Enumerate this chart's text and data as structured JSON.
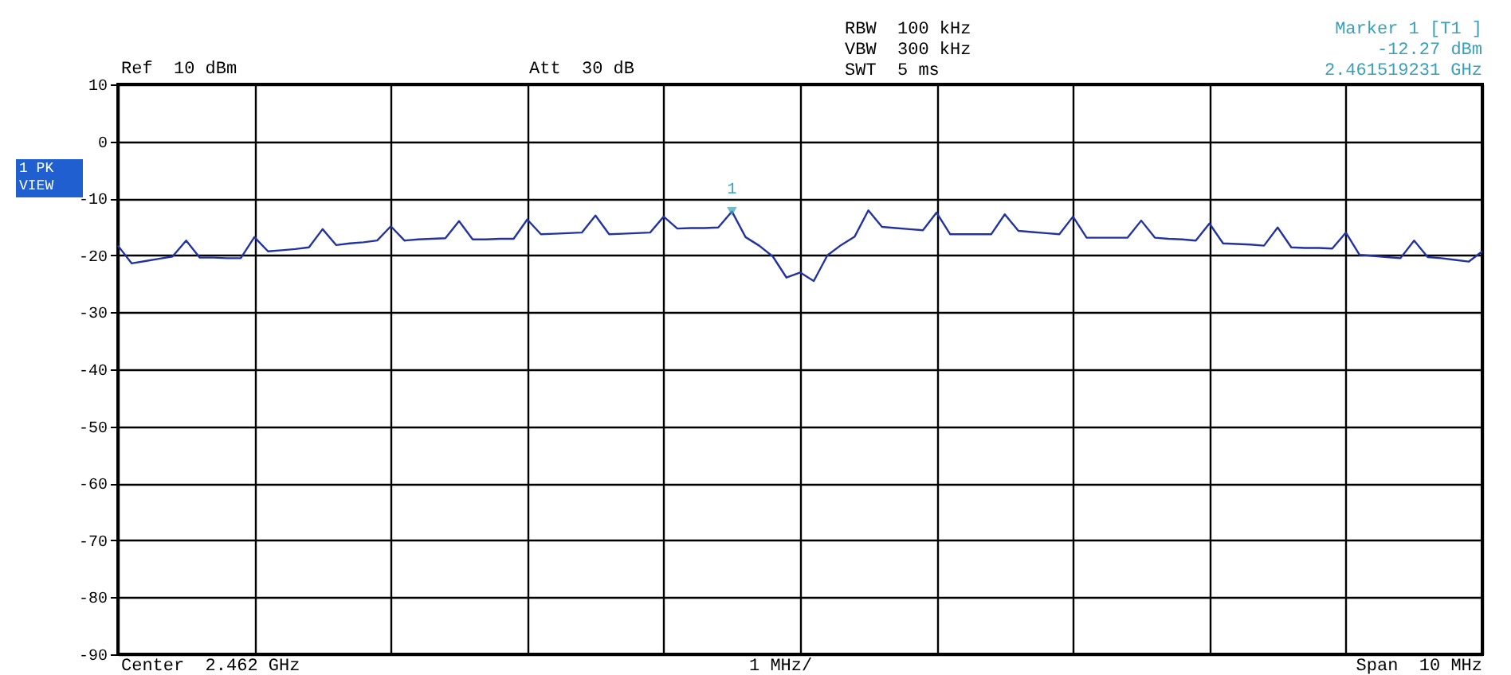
{
  "chart_data": {
    "type": "line",
    "annotations": [
      "Ref  10 dBm",
      "Att  30 dB",
      "RBW  100 kHz",
      "VBW  300 kHz",
      "SWT  5 ms",
      "Marker 1 [T1 ]",
      "-12.27 dBm",
      "2.461519231 GHz",
      "Center  2.462 GHz",
      "1 MHz/",
      "Span  10 MHz",
      "1 PK VIEW",
      {
        "text": "1",
        "y": -12.27
      }
    ],
    "categories": [
      null,
      null,
      null,
      null,
      null,
      null,
      null,
      null,
      null,
      null,
      null,
      null,
      null,
      null,
      null,
      null,
      null,
      null,
      null,
      null,
      null,
      null,
      null,
      null,
      null,
      null,
      null,
      null,
      null,
      null,
      null,
      null,
      null,
      null,
      null,
      null,
      null,
      null,
      null,
      null,
      null,
      null,
      null,
      null,
      null,
      null,
      null,
      null,
      null,
      null,
      null,
      null,
      null,
      null,
      null,
      null,
      null,
      null,
      null,
      null,
      null,
      null,
      null,
      null,
      null,
      null,
      null,
      null,
      null,
      null,
      null,
      null,
      null,
      null,
      null,
      null,
      null,
      null,
      null,
      null,
      null,
      null,
      null,
      null,
      null,
      null,
      null,
      null,
      null,
      null,
      null,
      null,
      null,
      null,
      null,
      null,
      null,
      null,
      null,
      null,
      null
    ],
    "ylim": [
      -90,
      10
    ],
    "yticks": [
      -90,
      -80,
      -70,
      -60,
      -50,
      -40,
      -30,
      -20,
      -10,
      0,
      10
    ],
    "grid": true,
    "series": [
      {
        "color": "#2233a0",
        "values": [
          -18.3,
          -21.4,
          -21.0,
          -20.6,
          -20.2,
          -17.4,
          -20.4,
          -20.4,
          -20.5,
          -20.5,
          -16.8,
          -19.3,
          -19.1,
          -18.9,
          -18.6,
          -15.4,
          -18.2,
          -17.9,
          -17.7,
          -17.4,
          -14.9,
          -17.4,
          -17.2,
          -17.1,
          -17.0,
          -14.0,
          -17.2,
          -17.2,
          -17.1,
          -17.1,
          -13.7,
          -16.3,
          -16.2,
          -16.1,
          -16.0,
          -13.0,
          -16.3,
          -16.2,
          -16.1,
          -16.0,
          -13.2,
          -15.3,
          -15.2,
          -15.2,
          -15.1,
          -12.3,
          -16.8,
          -18.3,
          -20.2,
          -23.9,
          -23.0,
          -24.5,
          -20.0,
          -18.2,
          -16.7,
          -12.1,
          -15.0,
          -15.2,
          -15.4,
          -15.6,
          -12.5,
          -16.3,
          -16.3,
          -16.3,
          -16.3,
          -12.8,
          -15.7,
          -15.9,
          -16.1,
          -16.3,
          -13.2,
          -16.9,
          -16.9,
          -16.9,
          -16.9,
          -13.9,
          -16.9,
          -17.1,
          -17.2,
          -17.4,
          -14.4,
          -17.9,
          -18.0,
          -18.1,
          -18.3,
          -15.1,
          -18.6,
          -18.7,
          -18.7,
          -18.8,
          -16.0,
          -19.9,
          -20.1,
          -20.3,
          -20.5,
          -17.4,
          -20.3,
          -20.5,
          -20.8,
          -21.1,
          -19.3
        ]
      }
    ]
  }
}
